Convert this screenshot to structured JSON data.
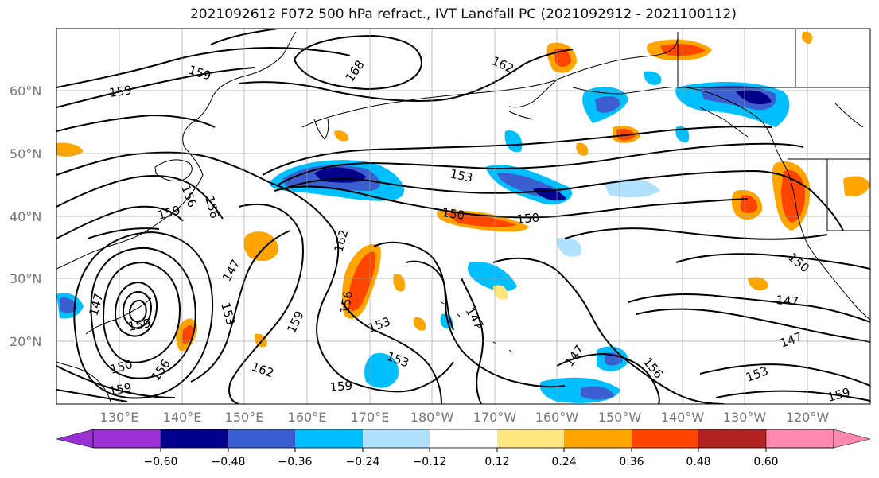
{
  "title": "2021092612 F072 500 hPa refract., IVT Landfall PC (2021092912 - 2021100112)",
  "lat_labels": [
    "60°N",
    "50°N",
    "40°N",
    "30°N",
    "20°N"
  ],
  "lon_labels": [
    "130°E",
    "140°E",
    "150°E",
    "160°E",
    "170°E",
    "180°W",
    "170°W",
    "160°W",
    "150°W",
    "140°W",
    "130°W",
    "120°W"
  ],
  "contour_labels": [
    "159",
    "159",
    "168",
    "162",
    "153",
    "150",
    "150",
    "156",
    "159",
    "156",
    "162",
    "147",
    "153",
    "159",
    "156",
    "153",
    "153",
    "147",
    "147",
    "159",
    "156",
    "150",
    "162",
    "159",
    "147",
    "150",
    "147",
    "159",
    "156",
    "153",
    "159",
    "147"
  ],
  "colorbar": {
    "colors": [
      "#9b30d4",
      "#00008b",
      "#3b5fd0",
      "#00bfff",
      "#b0e2ff",
      "#ffffff",
      "#ffe680",
      "#ffa500",
      "#ff4500",
      "#b22222",
      "#ff88b0"
    ],
    "ticks": [
      "−0.60",
      "−0.48",
      "−0.36",
      "−0.24",
      "−0.12",
      "0.12",
      "0.24",
      "0.36",
      "0.48",
      "0.60"
    ]
  }
}
